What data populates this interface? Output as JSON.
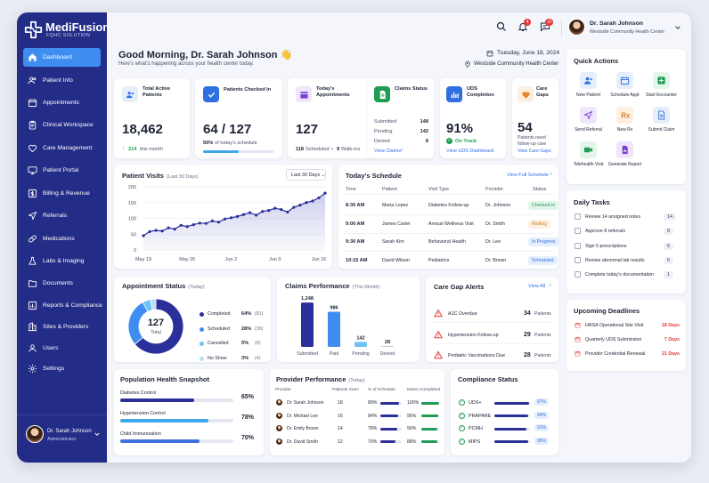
{
  "brand": {
    "name": "MediFusion",
    "tagline": "FQHC SOLUTION"
  },
  "sidebar": {
    "items": [
      {
        "label": "Dashboard",
        "icon": "home-icon"
      },
      {
        "label": "Patient Info",
        "icon": "users-icon"
      },
      {
        "label": "Appointments",
        "icon": "calendar-icon"
      },
      {
        "label": "Clinical Workspace",
        "icon": "clipboard-icon"
      },
      {
        "label": "Care Management",
        "icon": "heart-icon"
      },
      {
        "label": "Patient Portal",
        "icon": "monitor-icon"
      },
      {
        "label": "Billing & Revenue",
        "icon": "dollar-icon"
      },
      {
        "label": "Referrals",
        "icon": "send-icon"
      },
      {
        "label": "Medications",
        "icon": "pill-icon"
      },
      {
        "label": "Labs & Imaging",
        "icon": "flask-icon"
      },
      {
        "label": "Documents",
        "icon": "folder-icon"
      },
      {
        "label": "Reports & Compliance",
        "icon": "chart-icon"
      },
      {
        "label": "Sites & Providers",
        "icon": "building-icon"
      },
      {
        "label": "Users",
        "icon": "user-group-icon"
      },
      {
        "label": "Settings",
        "icon": "gear-icon"
      }
    ]
  },
  "sidebar_user": {
    "name": "Dr. Sarah Johnson",
    "role": "Administrator"
  },
  "header": {
    "notif_count": "4",
    "msg_count": "12",
    "user_name": "Dr. Sarah Johnson",
    "user_org": "Westside Community Health Center"
  },
  "greeting": {
    "title": "Good Morning, Dr. Sarah Johnson 👋",
    "subtitle": "Here's what's happening across your health center today.",
    "date": "Tuesday, June 18, 2024",
    "location": "Westside Community Health Center"
  },
  "stats": {
    "active": {
      "label": "Total Active Patients",
      "value": "18,462",
      "delta": "214",
      "delta_label": "this month"
    },
    "checked": {
      "label": "Patients Checked In",
      "value": "64 / 127",
      "pct": "50%",
      "pct_label": "of today's schedule",
      "progress": 0.5
    },
    "appts": {
      "label": "Today's Appointments",
      "value": "127",
      "scheduled": "118",
      "scheduled_label": "Scheduled",
      "walkins": "9",
      "walkins_label": "Walk-ins"
    },
    "claims": {
      "label": "Claims Status",
      "rows": [
        {
          "k": "Submitted",
          "v": "148"
        },
        {
          "k": "Pending",
          "v": "142"
        },
        {
          "k": "Denied",
          "v": "8"
        }
      ],
      "link": "View Claims"
    },
    "uds": {
      "label": "UDS Completion",
      "value": "91%",
      "status": "On Track",
      "link": "View UDS Dashboard"
    },
    "gaps": {
      "label": "Care Gaps",
      "value": "54",
      "note": "Patients need follow-up care",
      "link": "View Care Gaps"
    }
  },
  "visits": {
    "title": "Patient Visits",
    "period": "(Last 30 Days)",
    "range": "Last 30 Days"
  },
  "chart_data": {
    "type": "line",
    "title": "Patient Visits",
    "x": [
      "May 19",
      "May 20",
      "May 21",
      "May 22",
      "May 23",
      "May 24",
      "May 25",
      "May 26",
      "May 27",
      "May 28",
      "May 29",
      "May 30",
      "May 31",
      "Jun 1",
      "Jun 2",
      "Jun 3",
      "Jun 4",
      "Jun 5",
      "Jun 6",
      "Jun 7",
      "Jun 8",
      "Jun 9",
      "Jun 10",
      "Jun 11",
      "Jun 12",
      "Jun 13",
      "Jun 14",
      "Jun 15",
      "Jun 16",
      "Jun 17"
    ],
    "values": [
      45,
      58,
      62,
      60,
      70,
      66,
      78,
      74,
      80,
      85,
      84,
      92,
      88,
      98,
      102,
      106,
      112,
      118,
      110,
      122,
      125,
      132,
      128,
      120,
      135,
      142,
      150,
      155,
      165,
      180
    ],
    "xticks": [
      "May 19",
      "May 26",
      "Jun 2",
      "Jun 9",
      "Jun 16"
    ],
    "yticks": [
      0,
      50,
      100,
      150,
      200
    ],
    "ylim": [
      0,
      200
    ]
  },
  "schedule": {
    "title": "Today's Schedule",
    "link": "View Full Schedule",
    "cols": [
      "Time",
      "Patient",
      "Visit Type",
      "Provider",
      "Status"
    ],
    "rows": [
      {
        "time": "8:30 AM",
        "patient": "Maria Lopez",
        "type": "Diabetes Follow-up",
        "provider": "Dr. Johnson",
        "status": "Checked In",
        "color": "#1f9d55",
        "bg": "#e3f6ea"
      },
      {
        "time": "9:00 AM",
        "patient": "James Carter",
        "type": "Annual Wellness Visit",
        "provider": "Dr. Smith",
        "status": "Waiting",
        "color": "#d9822b",
        "bg": "#fdf0e0"
      },
      {
        "time": "9:30 AM",
        "patient": "Sarah Kim",
        "type": "Behavioral Health",
        "provider": "Dr. Lee",
        "status": "In Progress",
        "color": "#2f6fe0",
        "bg": "#e5eefc"
      },
      {
        "time": "10:15 AM",
        "patient": "David Wilson",
        "type": "Pediatrics",
        "provider": "Dr. Brown",
        "status": "Scheduled",
        "color": "#2f6fe0",
        "bg": "#e5eefc"
      }
    ]
  },
  "appt_status": {
    "title": "Appointment Status",
    "period": "(Today)",
    "total": "127",
    "total_label": "Total",
    "items": [
      {
        "label": "Completed",
        "pct": "64%",
        "count": "(81)",
        "value": 81,
        "color": "#2a2f99"
      },
      {
        "label": "Scheduled",
        "pct": "28%",
        "count": "(36)",
        "value": 36,
        "color": "#3f8df0"
      },
      {
        "label": "Cancelled",
        "pct": "5%",
        "count": "(6)",
        "value": 6,
        "color": "#6ec3f2"
      },
      {
        "label": "No Show",
        "pct": "3%",
        "count": "(4)",
        "value": 4,
        "color": "#b8dcf6"
      }
    ]
  },
  "claims_perf": {
    "title": "Claims Performance",
    "period": "(This Month)",
    "bars": [
      {
        "label": "Submitted",
        "value": 1248,
        "display": "1,248",
        "color": "#2a2f99"
      },
      {
        "label": "Paid",
        "value": 986,
        "display": "986",
        "color": "#3f8df0"
      },
      {
        "label": "Pending",
        "value": 142,
        "display": "142",
        "color": "#6ec3f2"
      },
      {
        "label": "Denied",
        "value": 28,
        "display": "28",
        "color": "#c9ccd8"
      }
    ]
  },
  "care_gaps": {
    "title": "Care Gap Alerts",
    "link": "View All",
    "unit": "Patients",
    "rows": [
      {
        "label": "A1C Overdue",
        "count": "34"
      },
      {
        "label": "Hypertension Follow-up",
        "count": "29"
      },
      {
        "label": "Pediatric Vaccinations Due",
        "count": "28"
      }
    ]
  },
  "quick": {
    "title": "Quick Actions",
    "items": [
      {
        "label": "New Patient",
        "icon": "user-plus-icon",
        "color": "#2f6fe0",
        "bg": "#e6eefc"
      },
      {
        "label": "Schedule Appt",
        "icon": "calendar-icon",
        "color": "#2f6fe0",
        "bg": "#e6eefc"
      },
      {
        "label": "Start Encounter",
        "icon": "plus-icon",
        "color": "#1f9d55",
        "bg": "#e3f6ea"
      },
      {
        "label": "Send Referral",
        "icon": "send-icon",
        "color": "#7a3fd1",
        "bg": "#efe6fb"
      },
      {
        "label": "New Rx",
        "icon": "rx-icon",
        "color": "#d9822b",
        "bg": "#fdf0e0"
      },
      {
        "label": "Submit Claim",
        "icon": "file-icon",
        "color": "#2f6fe0",
        "bg": "#e6eefc"
      },
      {
        "label": "Telehealth Visit",
        "icon": "video-icon",
        "color": "#1f9d55",
        "bg": "#e3f6ea"
      },
      {
        "label": "Generate Report",
        "icon": "report-icon",
        "color": "#7a3fd1",
        "bg": "#efe6fb"
      }
    ]
  },
  "tasks": {
    "title": "Daily Tasks",
    "items": [
      {
        "label": "Review 14 unsigned notes",
        "count": "14"
      },
      {
        "label": "Approve 8 referrals",
        "count": "8"
      },
      {
        "label": "Sign 5 prescriptions",
        "count": "5"
      },
      {
        "label": "Review abnormal lab results",
        "count": "6"
      },
      {
        "label": "Complete today's documentation",
        "count": "1"
      }
    ]
  },
  "deadlines": {
    "title": "Upcoming Deadlines",
    "items": [
      {
        "label": "HRSA Operational Site Visit",
        "days": "18 Days"
      },
      {
        "label": "Quarterly UDS Submission",
        "days": "7 Days"
      },
      {
        "label": "Provider Credential Renewal",
        "days": "21 Days"
      }
    ]
  },
  "pop": {
    "title": "Population Health Snapshot",
    "items": [
      {
        "label": "Diabetes Control",
        "pct": "65%",
        "value": 0.65,
        "color": "#2a2f99"
      },
      {
        "label": "Hypertension Control",
        "pct": "78%",
        "value": 0.78,
        "color": "#3fa7e8"
      },
      {
        "label": "Child Immunization",
        "pct": "70%",
        "value": 0.7,
        "color": "#3f6fe0"
      }
    ]
  },
  "provider": {
    "title": "Provider Performance",
    "period": "(Today)",
    "cols": [
      "Provider",
      "Patients Seen",
      "% of Schedule",
      "Notes Completed"
    ],
    "rows": [
      {
        "name": "Dr. Sarah Johnson",
        "seen": "18",
        "pct": "89%",
        "pctv": 0.89,
        "notes": "100%",
        "notesv": 1.0
      },
      {
        "name": "Dr. Michael Lee",
        "seen": "16",
        "pct": "84%",
        "pctv": 0.84,
        "notes": "95%",
        "notesv": 0.95
      },
      {
        "name": "Dr. Emily Brown",
        "seen": "14",
        "pct": "78%",
        "pctv": 0.78,
        "notes": "90%",
        "notesv": 0.9
      },
      {
        "name": "Dr. David Smith",
        "seen": "12",
        "pct": "70%",
        "pctv": 0.7,
        "notes": "88%",
        "notesv": 0.88
      }
    ]
  },
  "compliance": {
    "title": "Compliance Status",
    "items": [
      {
        "label": "UDS+",
        "pct": "97%",
        "value": 0.97
      },
      {
        "label": "PRAPARE",
        "pct": "94%",
        "value": 0.94
      },
      {
        "label": "PCMH",
        "pct": "91%",
        "value": 0.91
      },
      {
        "label": "MIPS",
        "pct": "95%",
        "value": 0.95
      }
    ]
  }
}
